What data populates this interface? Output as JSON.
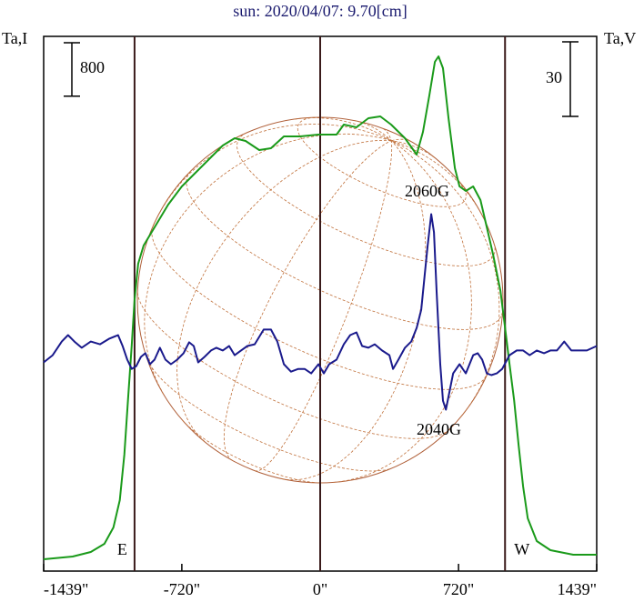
{
  "chart_data": {
    "type": "line",
    "title": "sun: 2020/04/07: 9.70[cm]",
    "y_label": "Ta,I",
    "y2_label": "Ta,V",
    "scale_bar": 800,
    "scale_bar2": 30,
    "xlim": [
      -1439,
      1439
    ],
    "xticks": [
      {
        "value": -1439,
        "label": "-1439\""
      },
      {
        "value": -720,
        "label": "-720\""
      },
      {
        "value": 0,
        "label": "0\""
      },
      {
        "value": 720,
        "label": "720\""
      },
      {
        "value": 1439,
        "label": "1439\""
      }
    ],
    "ylim": [
      0,
      8000
    ],
    "y2lim": [
      -85,
      130
    ],
    "vlines": [
      -966,
      0,
      962
    ],
    "limb_labels": [
      "E",
      "W"
    ],
    "annotations": [
      "2060G",
      "2040G"
    ],
    "series": [
      {
        "color": "#1a9a1a",
        "x": [
          -1439,
          -1288,
          -1194,
          -1123,
          -1076,
          -1043,
          -1019,
          -1000,
          -981,
          -966,
          -947,
          -919,
          -862,
          -791,
          -720,
          -649,
          -578,
          -507,
          -445,
          -388,
          -317,
          -256,
          -189,
          -104,
          -9,
          85,
          123,
          189,
          251,
          313,
          369,
          441,
          502,
          535,
          568,
          597,
          616,
          639,
          668,
          701,
          725,
          758,
          796,
          834,
          867,
          900,
          938,
          962,
          985,
          1009,
          1033,
          1056,
          1080,
          1127,
          1198,
          1317,
          1439
        ],
        "values": [
          177,
          218,
          286,
          408,
          653,
          1061,
          1741,
          2558,
          3374,
          4054,
          4599,
          4871,
          5143,
          5483,
          5755,
          5959,
          6163,
          6367,
          6476,
          6435,
          6299,
          6327,
          6503,
          6503,
          6531,
          6531,
          6680,
          6639,
          6776,
          6803,
          6680,
          6476,
          6231,
          6571,
          7116,
          7619,
          7701,
          7524,
          6776,
          6027,
          5755,
          5687,
          5755,
          5551,
          5143,
          4735,
          4190,
          3646,
          3102,
          2558,
          1878,
          1265,
          789,
          449,
          313,
          245,
          245
        ]
      },
      {
        "color": "#1a1a8c",
        "axis": "y2",
        "x": [
          -1439,
          -1392,
          -1345,
          -1312,
          -1279,
          -1241,
          -1194,
          -1146,
          -1099,
          -1052,
          -1028,
          -1004,
          -981,
          -957,
          -933,
          -910,
          -886,
          -862,
          -834,
          -805,
          -777,
          -744,
          -711,
          -682,
          -658,
          -635,
          -602,
          -568,
          -540,
          -507,
          -474,
          -445,
          -412,
          -379,
          -341,
          -294,
          -256,
          -223,
          -189,
          -152,
          -114,
          -81,
          -47,
          -9,
          19,
          47,
          85,
          123,
          156,
          189,
          218,
          251,
          284,
          322,
          360,
          379,
          407,
          441,
          474,
          502,
          526,
          545,
          559,
          578,
          592,
          606,
          625,
          639,
          654,
          673,
          692,
          725,
          758,
          796,
          820,
          843,
          867,
          891,
          919,
          947,
          985,
          1023,
          1056,
          1090,
          1127,
          1165,
          1198,
          1232,
          1270,
          1307,
          1341,
          1388,
          1439
        ],
        "values": [
          -1.1,
          1.8,
          7.3,
          9.9,
          7.3,
          4.8,
          7.3,
          6.2,
          8.4,
          9.9,
          5.5,
          0,
          -3.7,
          -2.6,
          1.1,
          2.6,
          -1.8,
          0,
          4.8,
          0,
          -1.8,
          0,
          2.6,
          7.0,
          5.5,
          -1.1,
          1.1,
          3.7,
          4.8,
          3.7,
          5.5,
          1.8,
          3.7,
          5.5,
          6.2,
          12.1,
          12.1,
          7.3,
          -1.8,
          -4.8,
          -3.7,
          -3.7,
          -5.5,
          -1.8,
          -5.5,
          -1.8,
          0,
          6.2,
          9.9,
          11.0,
          5.5,
          4.8,
          6.2,
          3.7,
          1.8,
          -3.7,
          0,
          4.8,
          7.3,
          12.8,
          20.1,
          34.8,
          45.7,
          58.5,
          51.2,
          27.4,
          -1.8,
          -16.5,
          -20.1,
          -12.8,
          -5.5,
          -1.8,
          -5.5,
          1.8,
          2.6,
          0,
          -5.5,
          -6.2,
          -5.5,
          -3.7,
          1.8,
          3.7,
          3.7,
          1.8,
          3.7,
          2.6,
          3.7,
          3.7,
          7.3,
          3.7,
          3.7,
          3.7,
          5.5
        ]
      }
    ]
  }
}
